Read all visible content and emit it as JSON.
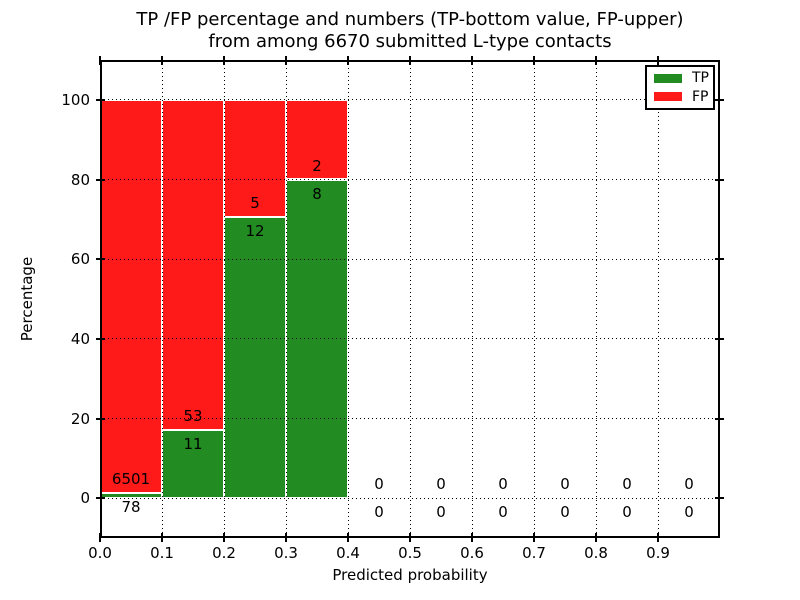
{
  "title": {
    "line1": "TP /FP percentage and numbers (TP-bottom value, FP-upper)",
    "line2": "from among 6670 submitted L-type contacts"
  },
  "chart_data": {
    "type": "bar",
    "stacked": true,
    "title": "TP /FP percentage and numbers (TP-bottom value, FP-upper) from among 6670 submitted L-type contacts",
    "xlabel": "Predicted probability",
    "ylabel": "Percentage",
    "x_tick_labels": [
      "0.0",
      "0.1",
      "0.2",
      "0.3",
      "0.4",
      "0.5",
      "0.6",
      "0.7",
      "0.8",
      "0.9"
    ],
    "y_tick_values": [
      0,
      20,
      40,
      60,
      80,
      100
    ],
    "xlim": [
      0.0,
      1.0
    ],
    "ylim": [
      -10,
      110
    ],
    "bin_width": 0.1,
    "grid": "dotted-black",
    "total_submitted": 6670,
    "categories": [
      "0.0-0.1",
      "0.1-0.2",
      "0.2-0.3",
      "0.3-0.4",
      "0.4-0.5",
      "0.5-0.6",
      "0.6-0.7",
      "0.7-0.8",
      "0.8-0.9",
      "0.9-1.0"
    ],
    "series": [
      {
        "name": "TP",
        "color": "#228b22",
        "counts": [
          78,
          11,
          12,
          8,
          0,
          0,
          0,
          0,
          0,
          0
        ],
        "percent": [
          1.19,
          17.19,
          70.59,
          80.0,
          0,
          0,
          0,
          0,
          0,
          0
        ]
      },
      {
        "name": "FP",
        "color": "#ff1a1a",
        "counts": [
          6501,
          53,
          5,
          2,
          0,
          0,
          0,
          0,
          0,
          0
        ],
        "percent": [
          98.81,
          82.81,
          29.41,
          20.0,
          0,
          0,
          0,
          0,
          0,
          0
        ]
      }
    ],
    "legend": {
      "position": "upper right",
      "entries": [
        "TP",
        "FP"
      ]
    },
    "annotation_rule": "TP count below green top, FP count above green top; zero bins show 0 above and below baseline"
  },
  "colors": {
    "tp": "#228b22",
    "fp": "#ff1a1a",
    "frame": "#000000",
    "grid": "#000000",
    "background": "#ffffff",
    "text": "#000000"
  }
}
